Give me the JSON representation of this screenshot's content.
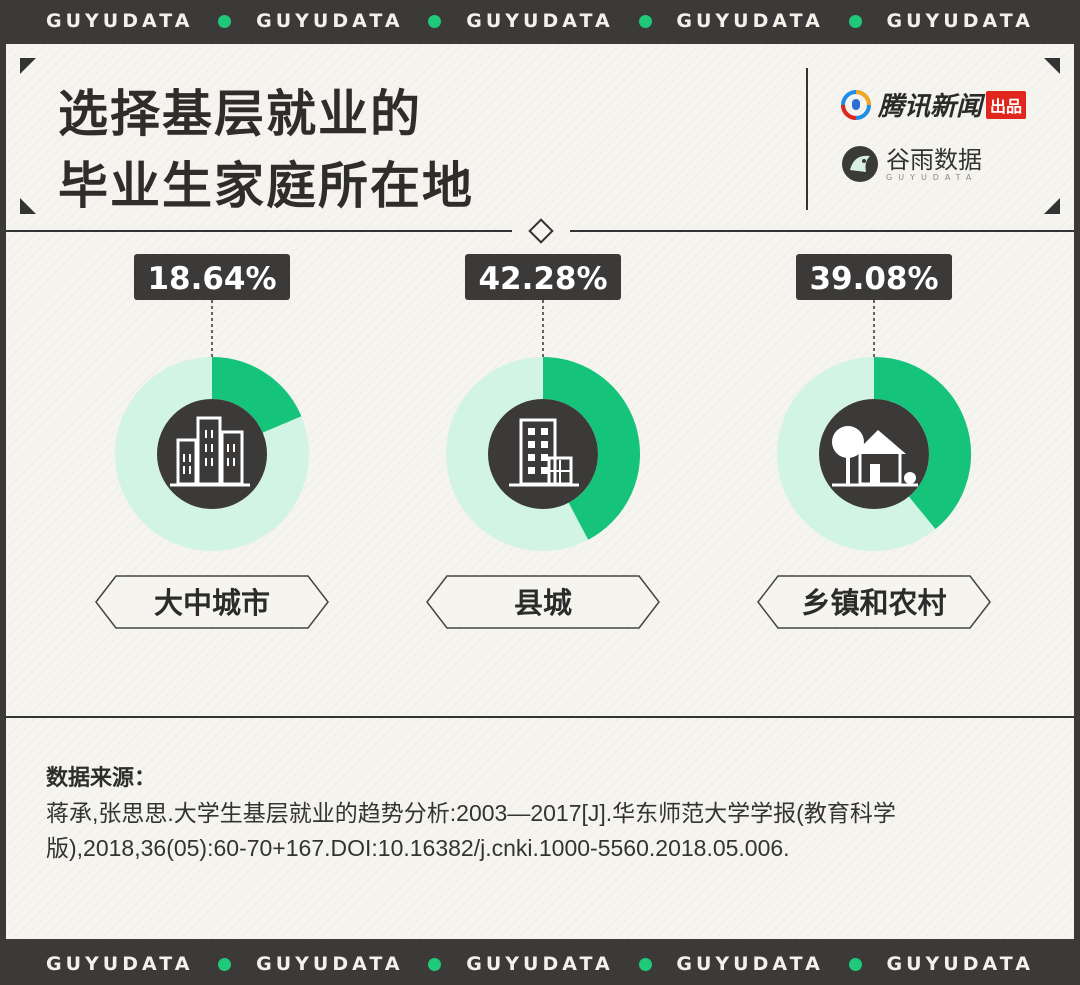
{
  "brand_strip": [
    "GUYUDATA",
    "GUYUDATA",
    "GUYUDATA",
    "GUYUDATA",
    "GUYUDATA"
  ],
  "header": {
    "title_line1": "选择基层就业的",
    "title_line2": "毕业生家庭所在地",
    "tencent_brand": "腾讯新闻",
    "tencent_tag": "出品",
    "guyu_brand": "谷雨数据",
    "guyu_sub": "GUYUDATA"
  },
  "colors": {
    "accent": "#16c37a",
    "ring_bg": "#d2f4e5",
    "dark": "#3b3a39",
    "panel": "#f6f4ee"
  },
  "chart_data": {
    "type": "pie",
    "title": "选择基层就业的毕业生家庭所在地",
    "unit": "%",
    "categories": [
      "大中城市",
      "县城",
      "乡镇和农村"
    ],
    "values": [
      18.64,
      42.28,
      39.08
    ],
    "labels": [
      "18.64%",
      "42.28%",
      "39.08%"
    ],
    "icons": [
      "city-buildings-icon",
      "office-building-icon",
      "rural-house-icon"
    ]
  },
  "source": {
    "heading": "数据来源：",
    "text": "蒋承,张思思.大学生基层就业的趋势分析:2003—2017[J].华东师范大学学报(教育科学版),2018,36(05):60-70+167.DOI:10.16382/j.cnki.1000-5560.2018.05.006."
  }
}
